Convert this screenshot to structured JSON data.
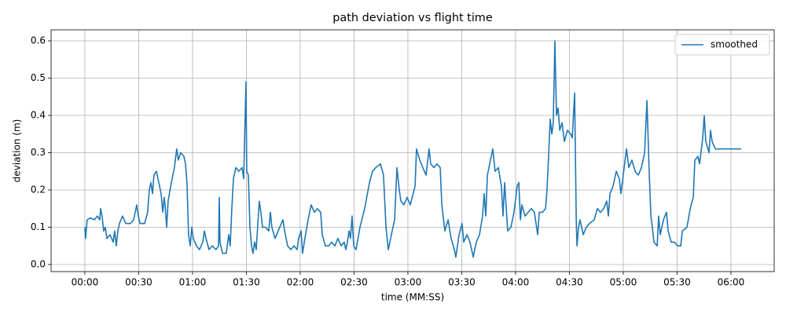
{
  "chart_data": {
    "type": "line",
    "title": "path deviation vs flight time",
    "xlabel": "time (MM:SS)",
    "ylabel": "deviation (m)",
    "grid": true,
    "legend": "upper right",
    "xlim": [
      -18.8,
      384.1
    ],
    "ylim": [
      -0.019,
      0.6295
    ],
    "xticks": [
      {
        "value": 0,
        "label": "00:00"
      },
      {
        "value": 30,
        "label": "00:30"
      },
      {
        "value": 60,
        "label": "01:00"
      },
      {
        "value": 90,
        "label": "01:30"
      },
      {
        "value": 120,
        "label": "02:00"
      },
      {
        "value": 150,
        "label": "02:30"
      },
      {
        "value": 180,
        "label": "03:00"
      },
      {
        "value": 210,
        "label": "03:30"
      },
      {
        "value": 240,
        "label": "04:00"
      },
      {
        "value": 270,
        "label": "04:30"
      },
      {
        "value": 300,
        "label": "05:00"
      },
      {
        "value": 330,
        "label": "05:30"
      },
      {
        "value": 360,
        "label": "06:00"
      }
    ],
    "yticks": [
      {
        "value": 0,
        "label": "0.0"
      },
      0.1,
      0.2,
      0.3,
      0.4,
      0.5,
      0.6
    ],
    "x": [
      0,
      0.4,
      1.3,
      3.1,
      5.3,
      7.0,
      8.3,
      8.8,
      9.6,
      10.5,
      11.4,
      12.3,
      14.0,
      15.8,
      16.6,
      17.5,
      18.4,
      19.3,
      21.0,
      22.8,
      25.4,
      27.2,
      28.9,
      29.8,
      30.7,
      33.3,
      35.0,
      35.9,
      36.8,
      37.7,
      38.5,
      39.9,
      41.2,
      42.5,
      43.4,
      44.2,
      44.7,
      45.6,
      46.4,
      48.2,
      49.9,
      51.2,
      52.1,
      53.4,
      55.2,
      56.1,
      56.9,
      57.8,
      58.7,
      59.6,
      60.4,
      62.2,
      63.9,
      65.7,
      66.6,
      67.5,
      69.2,
      71.0,
      73.1,
      74.5,
      74.9,
      75.3,
      76.7,
      78.8,
      80.2,
      81.0,
      81.9,
      82.8,
      84.1,
      85.8,
      87.6,
      88.5,
      89.8,
      90.2,
      91.1,
      92.0,
      92.9,
      93.7,
      94.6,
      95.5,
      96.4,
      97.2,
      98.1,
      99.0,
      100.7,
      102.5,
      103.4,
      104.2,
      106.0,
      107.7,
      109.5,
      110.4,
      111.3,
      113.0,
      114.8,
      116.5,
      118.3,
      119.1,
      120.5,
      121.3,
      122.6,
      124.4,
      126.1,
      127.9,
      129.6,
      131.4,
      132.3,
      134.0,
      135.8,
      137.5,
      139.3,
      141.0,
      142.8,
      144.5,
      145.4,
      146.3,
      147.2,
      148.0,
      148.9,
      149.8,
      151.1,
      153.3,
      155.9,
      158.6,
      160.3,
      162.1,
      164.7,
      166.4,
      167.8,
      169.1,
      170.8,
      172.6,
      173.9,
      175.2,
      176.1,
      177.8,
      179.6,
      181.3,
      184.0,
      184.8,
      186.6,
      188.3,
      190.1,
      191.8,
      192.7,
      194.5,
      196.2,
      198.0,
      198.9,
      200.6,
      202.4,
      204.1,
      205.9,
      206.7,
      208.5,
      210.2,
      211.1,
      212.9,
      214.6,
      216.4,
      218.1,
      219.9,
      221.6,
      222.5,
      223.4,
      224.3,
      226.0,
      227.3,
      228.6,
      230.4,
      232.1,
      233.0,
      233.9,
      235.6,
      237.4,
      239.1,
      240.9,
      241.8,
      242.7,
      243.5,
      245.3,
      247.0,
      248.8,
      250.5,
      252.3,
      253.2,
      254.9,
      256.7,
      257.5,
      258.4,
      259.3,
      260.2,
      261.0,
      261.9,
      262.8,
      263.7,
      264.6,
      265.9,
      267.2,
      268.9,
      270.7,
      271.6,
      272.9,
      273.8,
      274.2,
      275.1,
      275.9,
      277.7,
      279.4,
      281.2,
      283.8,
      285.6,
      287.3,
      289.1,
      290.8,
      291.7,
      292.6,
      294.3,
      296.1,
      297.8,
      298.7,
      300.5,
      301.8,
      303.1,
      304.8,
      306.6,
      308.4,
      310.1,
      311.9,
      313.2,
      314.5,
      315.4,
      316.2,
      317.1,
      318.9,
      319.7,
      320.6,
      322.4,
      324.1,
      325.0,
      326.7,
      328.5,
      330.3,
      332.0,
      332.9,
      335.5,
      337.3,
      339.0,
      339.9,
      341.6,
      342.5,
      344.3,
      345.1,
      346.0,
      347.8,
      348.6,
      349.5,
      351.3,
      355.7,
      360.0,
      365.7
    ],
    "series": [
      {
        "name": "smoothed",
        "color": "#1f77b4",
        "values": [
          0.1,
          0.07,
          0.12,
          0.125,
          0.12,
          0.13,
          0.12,
          0.15,
          0.13,
          0.09,
          0.1,
          0.07,
          0.08,
          0.06,
          0.09,
          0.05,
          0.09,
          0.11,
          0.13,
          0.11,
          0.11,
          0.12,
          0.16,
          0.13,
          0.11,
          0.11,
          0.14,
          0.2,
          0.22,
          0.19,
          0.24,
          0.25,
          0.22,
          0.19,
          0.14,
          0.18,
          0.16,
          0.1,
          0.17,
          0.22,
          0.26,
          0.31,
          0.28,
          0.3,
          0.29,
          0.27,
          0.22,
          0.08,
          0.05,
          0.1,
          0.07,
          0.05,
          0.04,
          0.06,
          0.09,
          0.07,
          0.04,
          0.05,
          0.04,
          0.05,
          0.18,
          0.06,
          0.03,
          0.03,
          0.08,
          0.05,
          0.15,
          0.23,
          0.26,
          0.25,
          0.26,
          0.23,
          0.49,
          0.25,
          0.24,
          0.1,
          0.05,
          0.03,
          0.06,
          0.04,
          0.11,
          0.17,
          0.14,
          0.1,
          0.1,
          0.09,
          0.14,
          0.1,
          0.07,
          0.09,
          0.11,
          0.12,
          0.09,
          0.05,
          0.04,
          0.05,
          0.04,
          0.07,
          0.09,
          0.03,
          0.07,
          0.12,
          0.16,
          0.14,
          0.15,
          0.14,
          0.08,
          0.05,
          0.05,
          0.06,
          0.05,
          0.07,
          0.05,
          0.06,
          0.04,
          0.06,
          0.09,
          0.07,
          0.13,
          0.05,
          0.04,
          0.1,
          0.15,
          0.22,
          0.25,
          0.26,
          0.27,
          0.24,
          0.1,
          0.04,
          0.08,
          0.12,
          0.26,
          0.2,
          0.17,
          0.16,
          0.18,
          0.16,
          0.21,
          0.31,
          0.28,
          0.26,
          0.24,
          0.31,
          0.27,
          0.26,
          0.27,
          0.26,
          0.16,
          0.09,
          0.12,
          0.07,
          0.04,
          0.02,
          0.08,
          0.11,
          0.06,
          0.08,
          0.06,
          0.02,
          0.06,
          0.08,
          0.13,
          0.19,
          0.13,
          0.24,
          0.28,
          0.31,
          0.25,
          0.26,
          0.21,
          0.13,
          0.22,
          0.09,
          0.1,
          0.14,
          0.21,
          0.22,
          0.12,
          0.16,
          0.13,
          0.14,
          0.15,
          0.14,
          0.08,
          0.14,
          0.14,
          0.15,
          0.2,
          0.29,
          0.39,
          0.35,
          0.38,
          0.6,
          0.4,
          0.42,
          0.36,
          0.38,
          0.33,
          0.36,
          0.35,
          0.34,
          0.46,
          0.12,
          0.05,
          0.1,
          0.12,
          0.08,
          0.1,
          0.11,
          0.12,
          0.15,
          0.14,
          0.15,
          0.17,
          0.13,
          0.19,
          0.21,
          0.25,
          0.23,
          0.19,
          0.26,
          0.31,
          0.26,
          0.28,
          0.25,
          0.24,
          0.26,
          0.3,
          0.44,
          0.24,
          0.13,
          0.1,
          0.06,
          0.05,
          0.13,
          0.08,
          0.12,
          0.14,
          0.09,
          0.06,
          0.06,
          0.05,
          0.05,
          0.09,
          0.1,
          0.15,
          0.18,
          0.28,
          0.29,
          0.27,
          0.34,
          0.4,
          0.33,
          0.3,
          0.36,
          0.33,
          0.31,
          0.31,
          0.31,
          0.31
        ]
      }
    ]
  }
}
